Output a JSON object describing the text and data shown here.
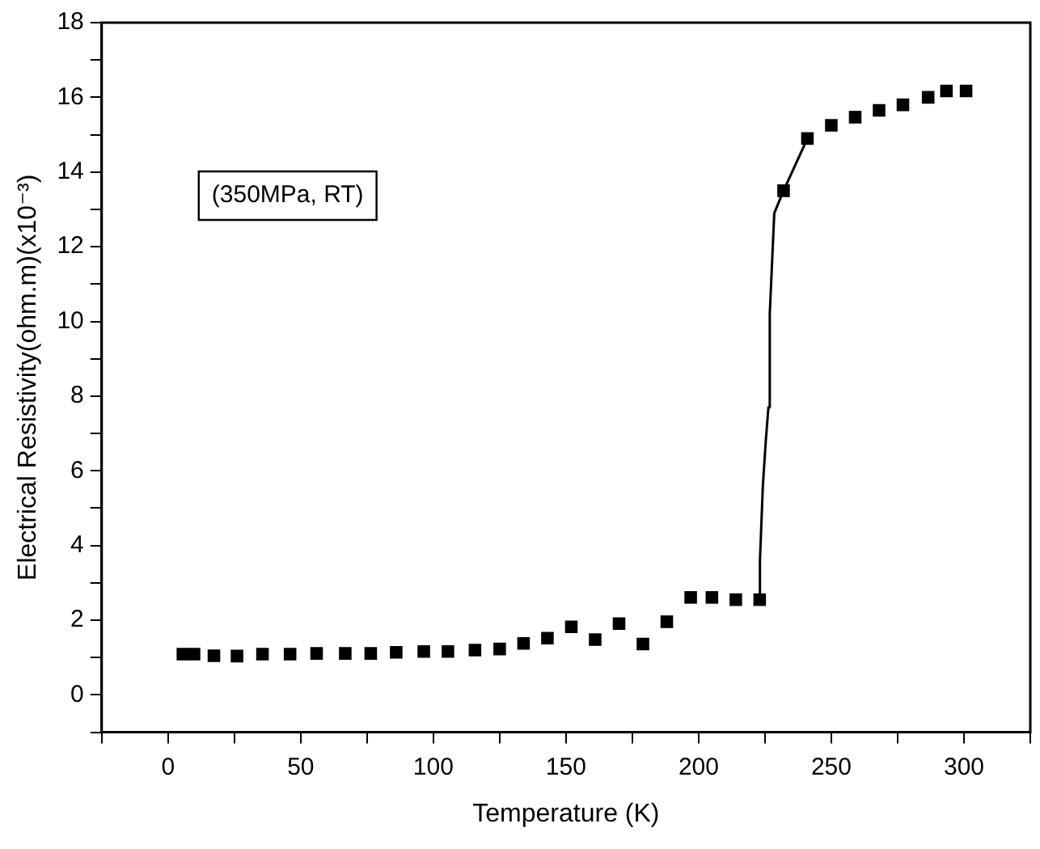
{
  "chart_data": {
    "type": "scatter",
    "xlabel": "Temperature (K)",
    "ylabel": "Electrical Resistivity(ohm.m)(x10⁻³)",
    "annotations": [
      "(350MPa, RT)"
    ],
    "xlim": [
      -25,
      325
    ],
    "xticks": [
      {
        "value": -25,
        "label": null
      },
      0,
      {
        "value": 25,
        "label": null
      },
      50,
      {
        "value": 75,
        "label": null
      },
      100,
      {
        "value": 125,
        "label": null
      },
      150,
      {
        "value": 175,
        "label": null
      },
      200,
      {
        "value": 225,
        "label": null
      },
      250,
      {
        "value": 275,
        "label": null
      },
      300,
      {
        "value": 325,
        "label": null
      }
    ],
    "ylim": [
      -1,
      18
    ],
    "yticks": [
      {
        "value": -1,
        "label": null
      },
      0,
      {
        "value": 1,
        "label": null
      },
      2,
      {
        "value": 3,
        "label": null
      },
      4,
      {
        "value": 5,
        "label": null
      },
      6,
      {
        "value": 7,
        "label": null
      },
      8,
      {
        "value": 9,
        "label": null
      },
      10,
      {
        "value": 11,
        "label": null
      },
      12,
      {
        "value": 13,
        "label": null
      },
      14,
      {
        "value": 15,
        "label": null
      },
      16,
      {
        "value": 17,
        "label": null
      },
      18
    ],
    "grid": false,
    "legend": false,
    "marker": "square",
    "series": [
      {
        "type": "scatter",
        "color": "#000000",
        "x": [
          5.6,
          9.8,
          17.3,
          26,
          35.6,
          46,
          56,
          66.8,
          76.4,
          86,
          96.4,
          105.5,
          115.7,
          125,
          134,
          143,
          152,
          161,
          170,
          179,
          188,
          197,
          205,
          214,
          223,
          232,
          241,
          250,
          259,
          268,
          277,
          286.5,
          293.4,
          300.8
        ],
        "values": [
          1.09,
          1.09,
          1.05,
          1.04,
          1.09,
          1.09,
          1.11,
          1.11,
          1.11,
          1.14,
          1.16,
          1.16,
          1.2,
          1.23,
          1.38,
          1.52,
          1.82,
          1.48,
          1.91,
          1.36,
          1.96,
          2.61,
          2.61,
          2.55,
          2.55,
          13.5,
          14.9,
          15.25,
          15.47,
          15.65,
          15.8,
          16.0,
          16.17,
          16.17
        ]
      },
      {
        "type": "line",
        "color": "#000000",
        "marker": "none",
        "x": [
          223,
          223.1,
          224.2,
          225.3,
          226.3,
          226.8,
          228,
          228.5,
          232,
          241
        ],
        "values": [
          2.55,
          3.6,
          5.6,
          6.8,
          7.7,
          10.2,
          12.1,
          12.9,
          13.5,
          14.9
        ]
      }
    ]
  }
}
